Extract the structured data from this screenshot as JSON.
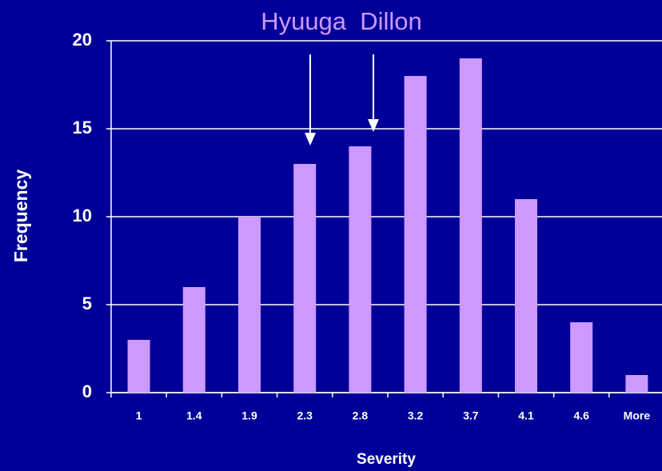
{
  "chart_data": {
    "type": "bar",
    "title": "Hyuuga  Dillon",
    "x_label": "Severity",
    "y_label": "Frequency",
    "categories": [
      "1",
      "1.4",
      "1.9",
      "2.3",
      "2.8",
      "3.2",
      "3.7",
      "4.1",
      "4.6",
      "More"
    ],
    "values": [
      3,
      6,
      10,
      13,
      14,
      18,
      19,
      11,
      4,
      1
    ],
    "color": "#cc99ff",
    "ylim": [
      0,
      20
    ],
    "yticks": [
      0,
      5,
      10,
      15,
      20
    ],
    "grid": true
  }
}
